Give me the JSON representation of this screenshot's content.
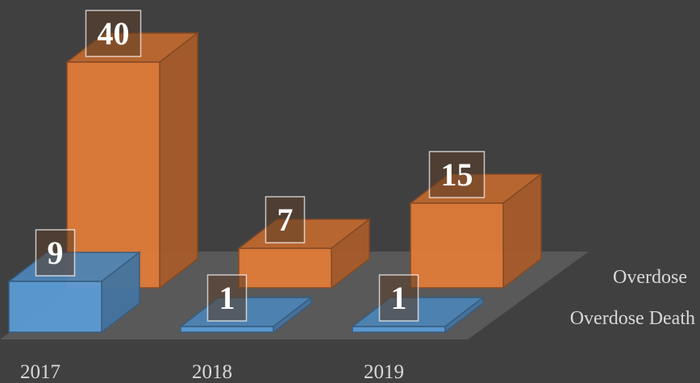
{
  "chart_data": {
    "type": "bar",
    "categories": [
      "2017",
      "2018",
      "2019"
    ],
    "series": [
      {
        "name": "Overdose",
        "color": "#e07b39",
        "values": [
          40,
          7,
          15
        ]
      },
      {
        "name": "Overdose Death",
        "color": "#5b9bd5",
        "values": [
          9,
          1,
          1
        ]
      }
    ]
  }
}
